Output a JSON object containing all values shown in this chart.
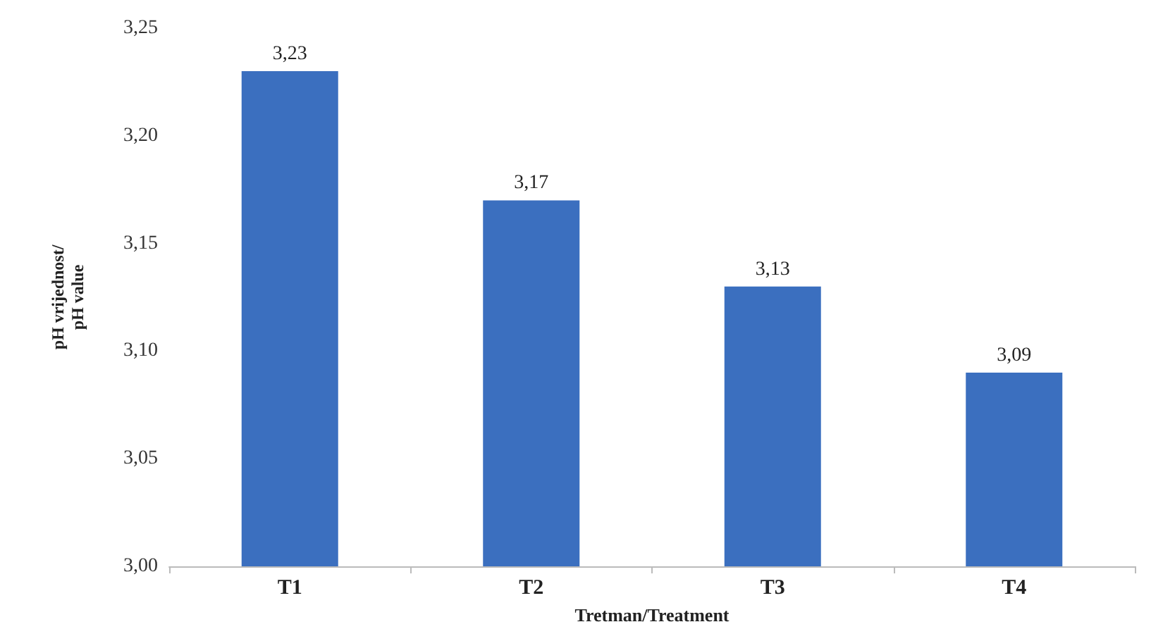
{
  "chart_data": {
    "type": "bar",
    "xlabel": "Tretman/Treatment",
    "ylabel": "pH vrijednost/\npH value",
    "categories": [
      "T1",
      "T2",
      "T3",
      "T4"
    ],
    "values": [
      3.23,
      3.17,
      3.13,
      3.09
    ],
    "value_labels": [
      "3,23",
      "3,17",
      "3,13",
      "3,09"
    ],
    "color": "#3b6fbf",
    "ylim": [
      3.0,
      3.25
    ],
    "yticks": [
      {
        "value": 3.0,
        "label": "3,00"
      },
      {
        "value": 3.05,
        "label": "3,05"
      },
      {
        "value": 3.1,
        "label": "3,10"
      },
      {
        "value": 3.15,
        "label": "3,15"
      },
      {
        "value": 3.2,
        "label": "3,20"
      },
      {
        "value": 3.25,
        "label": "3,25"
      }
    ],
    "grid": false
  }
}
